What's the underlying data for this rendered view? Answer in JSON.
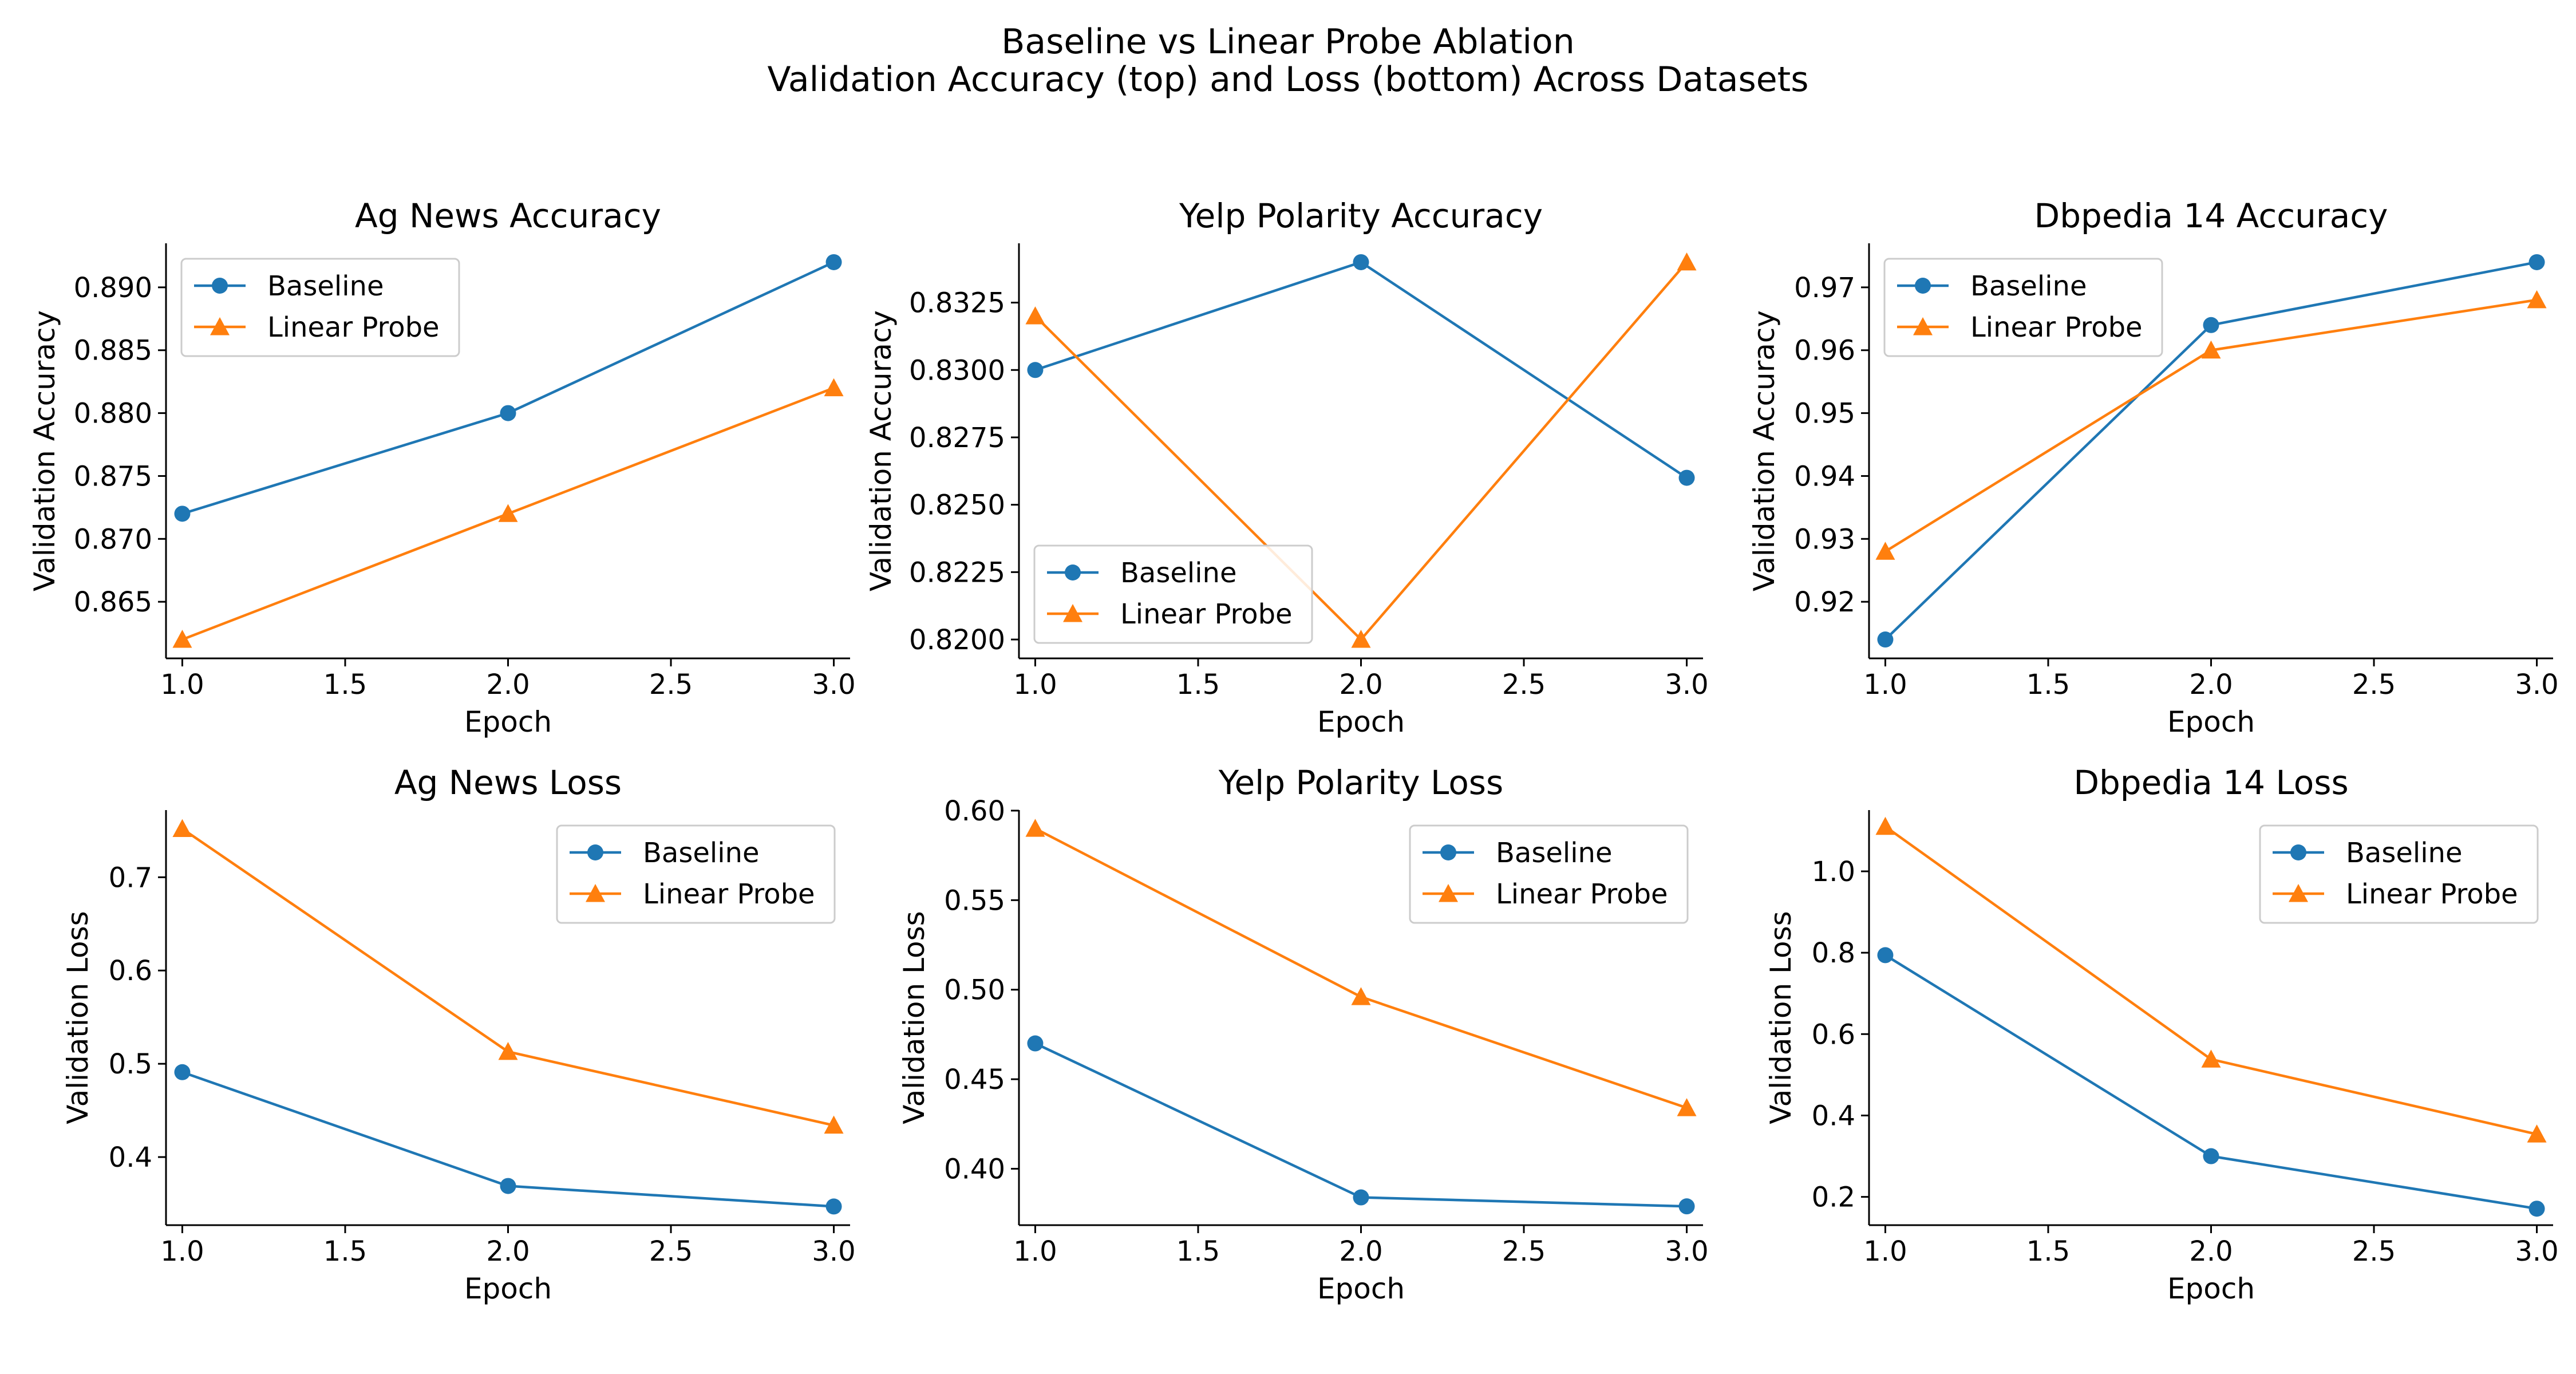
{
  "figure": {
    "title_line1": "Baseline vs Linear Probe Ablation",
    "title_line2": "Validation Accuracy (top) and Loss (bottom) Across Datasets"
  },
  "colors": {
    "baseline": "#1f77b4",
    "linear_probe": "#ff7f0e"
  },
  "chart_data": [
    {
      "type": "line",
      "title": "Ag News Accuracy",
      "xlabel": "Epoch",
      "ylabel": "Validation Accuracy",
      "x": [
        1,
        2,
        3
      ],
      "xticks": [
        "1.0",
        "1.5",
        "2.0",
        "2.5",
        "3.0"
      ],
      "yticks": [
        "0.865",
        "0.870",
        "0.875",
        "0.880",
        "0.885",
        "0.890"
      ],
      "xlim": [
        0.95,
        3.05
      ],
      "ylim": [
        0.8605,
        0.8935
      ],
      "legend": "upper left",
      "grid": false,
      "series": [
        {
          "name": "Baseline",
          "marker": "circle",
          "values": [
            0.872,
            0.88,
            0.892
          ]
        },
        {
          "name": "Linear Probe",
          "marker": "triangle",
          "values": [
            0.862,
            0.872,
            0.882
          ]
        }
      ]
    },
    {
      "type": "line",
      "title": "Yelp Polarity Accuracy",
      "xlabel": "Epoch",
      "ylabel": "Validation Accuracy",
      "x": [
        1,
        2,
        3
      ],
      "xticks": [
        "1.0",
        "1.5",
        "2.0",
        "2.5",
        "3.0"
      ],
      "yticks": [
        "0.8200",
        "0.8225",
        "0.8250",
        "0.8275",
        "0.8300",
        "0.8325"
      ],
      "xlim": [
        0.95,
        3.05
      ],
      "ylim": [
        0.8193,
        0.8347
      ],
      "legend": "lower left",
      "grid": false,
      "series": [
        {
          "name": "Baseline",
          "marker": "circle",
          "values": [
            0.83,
            0.834,
            0.826
          ]
        },
        {
          "name": "Linear Probe",
          "marker": "triangle",
          "values": [
            0.832,
            0.82,
            0.834
          ]
        }
      ]
    },
    {
      "type": "line",
      "title": "Dbpedia 14 Accuracy",
      "xlabel": "Epoch",
      "ylabel": "Validation Accuracy",
      "x": [
        1,
        2,
        3
      ],
      "xticks": [
        "1.0",
        "1.5",
        "2.0",
        "2.5",
        "3.0"
      ],
      "yticks": [
        "0.92",
        "0.93",
        "0.94",
        "0.95",
        "0.96",
        "0.97"
      ],
      "xlim": [
        0.95,
        3.05
      ],
      "ylim": [
        0.911,
        0.977
      ],
      "legend": "upper left",
      "grid": false,
      "series": [
        {
          "name": "Baseline",
          "marker": "circle",
          "values": [
            0.914,
            0.964,
            0.974
          ]
        },
        {
          "name": "Linear Probe",
          "marker": "triangle",
          "values": [
            0.928,
            0.96,
            0.968
          ]
        }
      ]
    },
    {
      "type": "line",
      "title": "Ag News Loss",
      "xlabel": "Epoch",
      "ylabel": "Validation Loss",
      "x": [
        1,
        2,
        3
      ],
      "xticks": [
        "1.0",
        "1.5",
        "2.0",
        "2.5",
        "3.0"
      ],
      "yticks": [
        "0.4",
        "0.5",
        "0.6",
        "0.7"
      ],
      "xlim": [
        0.95,
        3.05
      ],
      "ylim": [
        0.327,
        0.772
      ],
      "legend": "upper right",
      "grid": false,
      "series": [
        {
          "name": "Baseline",
          "marker": "circle",
          "values": [
            0.491,
            0.369,
            0.347
          ]
        },
        {
          "name": "Linear Probe",
          "marker": "triangle",
          "values": [
            0.752,
            0.513,
            0.434
          ]
        }
      ]
    },
    {
      "type": "line",
      "title": "Yelp Polarity Loss",
      "xlabel": "Epoch",
      "ylabel": "Validation Loss",
      "x": [
        1,
        2,
        3
      ],
      "xticks": [
        "1.0",
        "1.5",
        "2.0",
        "2.5",
        "3.0"
      ],
      "yticks": [
        "0.40",
        "0.45",
        "0.50",
        "0.55",
        "0.60"
      ],
      "xlim": [
        0.95,
        3.05
      ],
      "ylim": [
        0.3685,
        0.6003
      ],
      "legend": "upper right",
      "grid": false,
      "series": [
        {
          "name": "Baseline",
          "marker": "circle",
          "values": [
            0.47,
            0.384,
            0.379
          ]
        },
        {
          "name": "Linear Probe",
          "marker": "triangle",
          "values": [
            0.59,
            0.496,
            0.434
          ]
        }
      ]
    },
    {
      "type": "line",
      "title": "Dbpedia 14 Loss",
      "xlabel": "Epoch",
      "ylabel": "Validation Loss",
      "x": [
        1,
        2,
        3
      ],
      "xticks": [
        "1.0",
        "1.5",
        "2.0",
        "2.5",
        "3.0"
      ],
      "yticks": [
        "0.2",
        "0.4",
        "0.6",
        "0.8",
        "1.0"
      ],
      "xlim": [
        0.95,
        3.05
      ],
      "ylim": [
        0.1305,
        1.1505
      ],
      "legend": "upper right",
      "grid": false,
      "series": [
        {
          "name": "Baseline",
          "marker": "circle",
          "values": [
            0.794,
            0.3,
            0.171
          ]
        },
        {
          "name": "Linear Probe",
          "marker": "triangle",
          "values": [
            1.11,
            0.538,
            0.354
          ]
        }
      ]
    }
  ]
}
